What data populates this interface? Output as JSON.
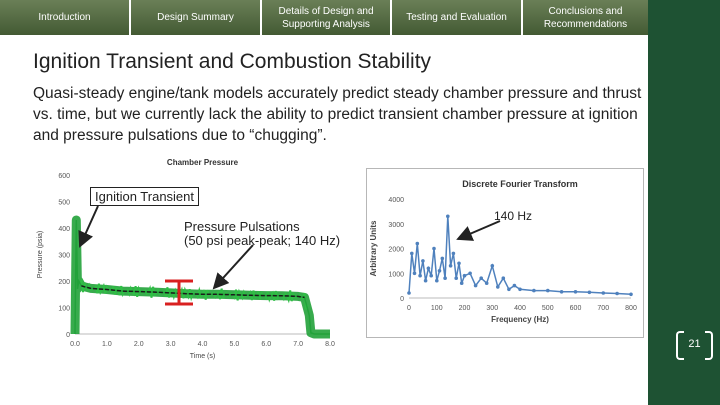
{
  "nav": {
    "items": [
      {
        "label": "Introduction"
      },
      {
        "label": "Design Summary"
      },
      {
        "label": "Details of Design and Supporting Analysis"
      },
      {
        "label": "Testing and Evaluation"
      },
      {
        "label": "Conclusions and Recommendations"
      }
    ]
  },
  "slide": {
    "title": "Ignition Transient and Combustion Stability",
    "body": "Quasi-steady engine/tank models accurately predict steady chamber pressure and thrust vs. time, but we currently lack the ability to predict transient chamber pressure at ignition and pressure pulsations due to “chugging”.",
    "page_number": "21"
  },
  "callouts": {
    "ignition": "Ignition Transient",
    "pulsations_title": "Pressure Pulsations",
    "pulsations_detail": "(50 psi peak-peak; 140 Hz)",
    "peak": "140 Hz"
  },
  "colors": {
    "sidebar": "#1e5233",
    "nav": "#56693f",
    "pressure_series": "#22a23a",
    "pressure_mean": "#1a1a1a",
    "dft_series": "#4f81bd",
    "annotation": "#d92020"
  },
  "chart_data": [
    {
      "type": "line",
      "title": "Chamber Pressure",
      "xlabel": "Time (s)",
      "ylabel": "Pressure (psia)",
      "xlim": [
        0,
        8
      ],
      "ylim": [
        0,
        600
      ],
      "x_ticks": [
        "0.0",
        "1.0",
        "2.0",
        "3.0",
        "4.0",
        "5.0",
        "6.0",
        "7.0",
        "8.0"
      ],
      "y_ticks": [
        "0",
        "100",
        "200",
        "300",
        "400",
        "500",
        "600"
      ],
      "grid": false,
      "series": [
        {
          "x": [
            0,
            0.04,
            0.08,
            0.12,
            0.2,
            0.3,
            0.5,
            1,
            1.5,
            2,
            2.5,
            3,
            3.5,
            4,
            4.5,
            5,
            5.5,
            6,
            6.5,
            7,
            7.2,
            7.35,
            7.4,
            7.5,
            8
          ],
          "y": [
            0,
            430,
            170,
            200,
            182,
            178,
            172,
            168,
            162,
            160,
            158,
            155,
            152,
            150,
            150,
            148,
            146,
            145,
            144,
            142,
            138,
            70,
            5,
            0,
            0
          ]
        }
      ]
    },
    {
      "type": "line",
      "title": "Discrete Fourier Transform",
      "xlabel": "Frequency (Hz)",
      "ylabel": "Arbitrary Units",
      "xlim": [
        0,
        800
      ],
      "ylim": [
        0,
        4000
      ],
      "x_ticks": [
        "0",
        "100",
        "200",
        "300",
        "400",
        "500",
        "600",
        "700",
        "800"
      ],
      "y_ticks": [
        "0",
        "1000",
        "2000",
        "3000",
        "4000"
      ],
      "grid": false,
      "series": [
        {
          "x": [
            0,
            10,
            20,
            30,
            40,
            50,
            60,
            70,
            80,
            90,
            100,
            110,
            120,
            130,
            140,
            150,
            160,
            170,
            180,
            190,
            200,
            220,
            240,
            260,
            280,
            300,
            320,
            340,
            360,
            380,
            400,
            450,
            500,
            550,
            600,
            650,
            700,
            750,
            800
          ],
          "y": [
            200,
            1800,
            1000,
            2200,
            900,
            1500,
            700,
            1200,
            900,
            2000,
            700,
            1100,
            1600,
            800,
            3300,
            1300,
            1800,
            800,
            1400,
            600,
            900,
            1000,
            500,
            800,
            600,
            1300,
            450,
            800,
            350,
            500,
            350,
            300,
            300,
            250,
            250,
            230,
            200,
            180,
            150
          ]
        }
      ]
    }
  ]
}
